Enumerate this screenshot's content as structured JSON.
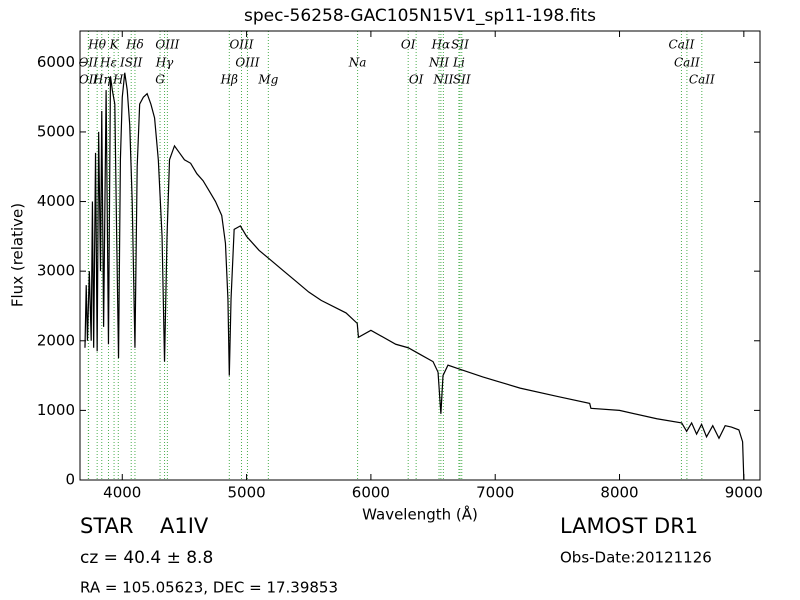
{
  "chart_data": {
    "type": "line",
    "title": "spec-56258-GAC105N15V1_sp11-198.fits",
    "x_label": "Wavelength (Å)",
    "y_label": "Flux (relative)",
    "x": [
      3700,
      3710,
      3720,
      3735,
      3750,
      3760,
      3770,
      3785,
      3798,
      3810,
      3825,
      3835,
      3850,
      3870,
      3889,
      3905,
      3920,
      3940,
      3955,
      3970,
      3985,
      4000,
      4020,
      4040,
      4060,
      4080,
      4102,
      4120,
      4140,
      4170,
      4200,
      4230,
      4260,
      4290,
      4320,
      4340,
      4360,
      4380,
      4420,
      4460,
      4500,
      4550,
      4600,
      4650,
      4700,
      4750,
      4800,
      4830,
      4850,
      4861,
      4875,
      4900,
      4950,
      5000,
      5100,
      5200,
      5300,
      5400,
      5500,
      5600,
      5800,
      5890,
      5900,
      6000,
      6200,
      6300,
      6400,
      6500,
      6540,
      6563,
      6580,
      6620,
      6700,
      6900,
      7200,
      7500,
      7760,
      7770,
      8000,
      8300,
      8500,
      8540,
      8580,
      8620,
      8660,
      8700,
      8750,
      8800,
      8850,
      8900,
      8960,
      8990,
      9000
    ],
    "values": [
      1900,
      2800,
      2000,
      3000,
      2000,
      4000,
      1900,
      4700,
      1850,
      5000,
      3000,
      5300,
      2200,
      5600,
      1950,
      5800,
      5600,
      5400,
      3500,
      1750,
      4600,
      5500,
      5850,
      5600,
      5100,
      4000,
      1900,
      4500,
      5400,
      5500,
      5550,
      5400,
      5200,
      4600,
      3500,
      1700,
      3500,
      4600,
      4800,
      4700,
      4600,
      4550,
      4400,
      4300,
      4150,
      4000,
      3800,
      3400,
      2600,
      1500,
      2600,
      3600,
      3650,
      3500,
      3300,
      3150,
      3000,
      2850,
      2700,
      2580,
      2400,
      2250,
      2050,
      2150,
      1950,
      1900,
      1800,
      1700,
      1550,
      950,
      1500,
      1650,
      1600,
      1480,
      1320,
      1200,
      1100,
      1030,
      1000,
      880,
      820,
      700,
      820,
      660,
      800,
      620,
      780,
      600,
      780,
      760,
      720,
      550,
      0
    ],
    "color": "#000000",
    "xlim": [
      3660,
      9130
    ],
    "ylim": [
      0,
      6450
    ],
    "xticks": [
      4000,
      5000,
      6000,
      7000,
      8000,
      9000
    ],
    "yticks": [
      0,
      1000,
      2000,
      3000,
      4000,
      5000,
      6000
    ],
    "spectral_line_color": "#4caf50",
    "spectral_lines": [
      [
        {
          "label": "Hθ",
          "wavelength": 3798
        },
        {
          "label": "K",
          "wavelength": 3934
        },
        {
          "label": "Hδ",
          "wavelength": 4102
        },
        {
          "label": "OIII",
          "wavelength": 4363
        },
        {
          "label": "OIII",
          "wavelength": 4959
        },
        {
          "label": "OI",
          "wavelength": 6300
        },
        {
          "label": "Hα",
          "wavelength": 6563
        },
        {
          "label": "SII",
          "wavelength": 6717
        },
        {
          "label": "CaII",
          "wavelength": 8498
        }
      ],
      [
        {
          "label": "OII",
          "wavelength": 3727
        },
        {
          "label": "Hε",
          "wavelength": 3889
        },
        {
          "label": "ISII",
          "wavelength": 4072
        },
        {
          "label": "Hγ",
          "wavelength": 4340
        },
        {
          "label": "OIII",
          "wavelength": 5007
        },
        {
          "label": "Na",
          "wavelength": 5893
        },
        {
          "label": "NII",
          "wavelength": 6548
        },
        {
          "label": "Li",
          "wavelength": 6708
        },
        {
          "label": "CaII",
          "wavelength": 8542
        }
      ],
      [
        {
          "label": "OII",
          "wavelength": 3729
        },
        {
          "label": "Hη",
          "wavelength": 3835
        },
        {
          "label": "H",
          "wavelength": 3968
        },
        {
          "label": "G",
          "wavelength": 4304
        },
        {
          "label": "Hβ",
          "wavelength": 4861
        },
        {
          "label": "Mg",
          "wavelength": 5175
        },
        {
          "label": "OI",
          "wavelength": 6364
        },
        {
          "label": "NII",
          "wavelength": 6583
        },
        {
          "label": "SII",
          "wavelength": 6731
        },
        {
          "label": "CaII",
          "wavelength": 8662
        }
      ]
    ]
  },
  "info": {
    "class": "STAR",
    "subclass": "A1IV",
    "cz": "cz = 40.4 ± 8.8",
    "radec": "RA = 105.05623, DEC = 17.39853",
    "survey": "LAMOST DR1",
    "obs_date": "Obs-Date:20121126"
  }
}
